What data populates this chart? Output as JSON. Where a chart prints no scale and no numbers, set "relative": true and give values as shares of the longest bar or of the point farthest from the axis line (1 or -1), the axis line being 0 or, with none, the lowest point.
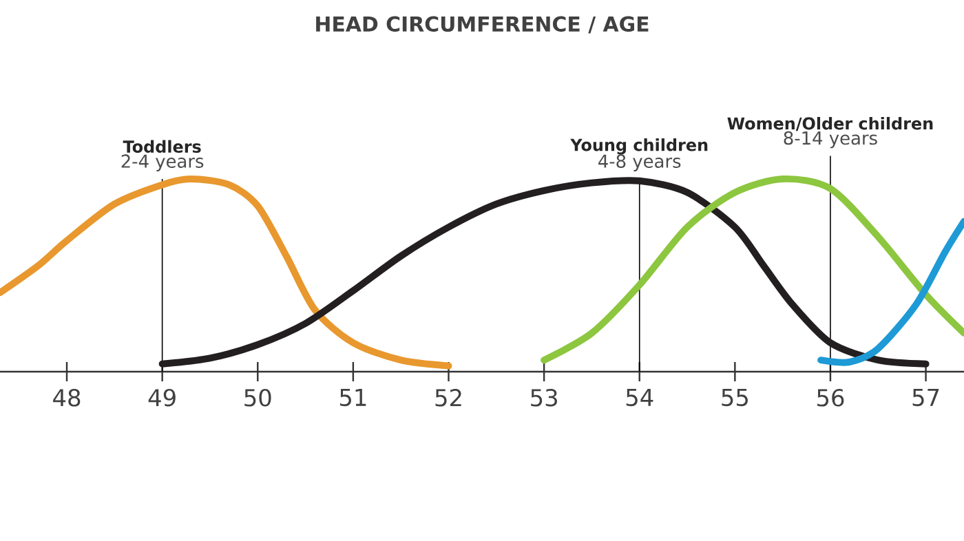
{
  "chart_data": {
    "type": "line",
    "title": "HEAD CIRCUMFERENCE / AGE",
    "relative": true,
    "xlim": [
      47.3,
      57.4
    ],
    "xticks": [
      48,
      49,
      50,
      51,
      52,
      53,
      54,
      55,
      56,
      57
    ],
    "series": [
      {
        "color": "#e8982e",
        "x": [
          47.3,
          47.7,
          48.0,
          48.5,
          49.0,
          49.3,
          49.7,
          50.0,
          50.3,
          50.6,
          51.0,
          51.5,
          52.0
        ],
        "values": [
          0.41,
          0.55,
          0.68,
          0.87,
          0.97,
          1.0,
          0.97,
          0.86,
          0.6,
          0.32,
          0.15,
          0.06,
          0.03
        ]
      },
      {
        "color": "#231f20",
        "x": [
          49.0,
          49.5,
          50.0,
          50.5,
          51.0,
          51.5,
          52.0,
          52.5,
          53.0,
          53.5,
          54.0,
          54.5,
          55.0,
          55.3,
          55.6,
          56.0,
          56.5,
          57.0
        ],
        "values": [
          0.04,
          0.07,
          0.14,
          0.25,
          0.42,
          0.6,
          0.75,
          0.87,
          0.94,
          0.98,
          0.99,
          0.93,
          0.75,
          0.55,
          0.35,
          0.15,
          0.06,
          0.04
        ]
      },
      {
        "color": "#8dc63f",
        "x": [
          53.0,
          53.5,
          54.0,
          54.5,
          55.0,
          55.5,
          56.0,
          56.5,
          57.0,
          57.4
        ],
        "values": [
          0.06,
          0.2,
          0.45,
          0.75,
          0.93,
          1.0,
          0.95,
          0.7,
          0.4,
          0.2
        ]
      },
      {
        "color": "#1e9ad6",
        "x": [
          55.9,
          56.2,
          56.5,
          56.9,
          57.2,
          57.4
        ],
        "values": [
          0.06,
          0.05,
          0.12,
          0.35,
          0.62,
          0.78
        ]
      }
    ],
    "ref_lines": [
      {
        "axis": "x",
        "value": 49,
        "label": "Toddlers"
      },
      {
        "axis": "x",
        "value": 54,
        "label": "Young children"
      },
      {
        "axis": "x",
        "value": 56,
        "label": "Women/Older children"
      }
    ],
    "annotations": [
      "2-4 years",
      "4-8 years",
      "8-14 years"
    ]
  }
}
